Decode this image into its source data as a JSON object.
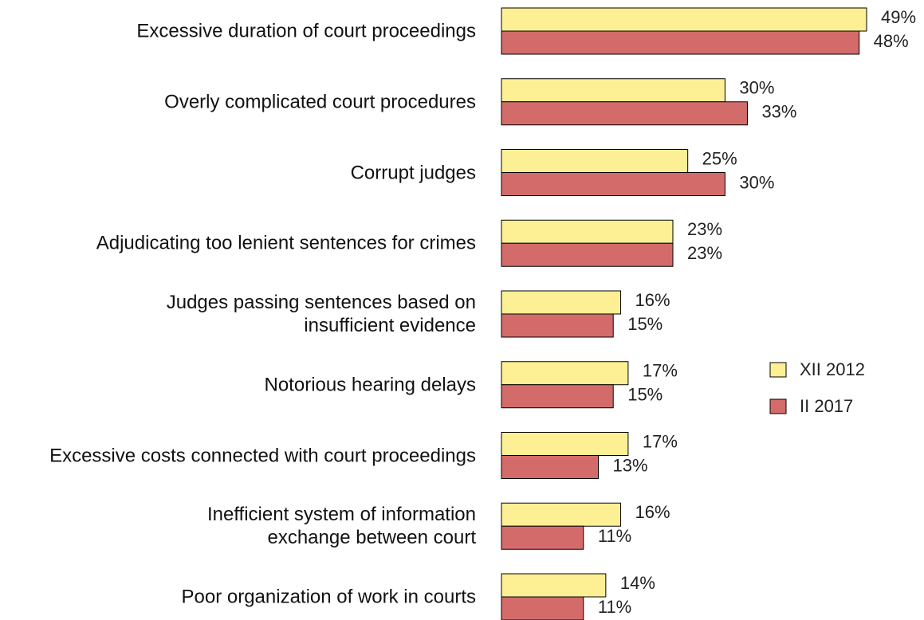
{
  "chart_data": {
    "type": "bar",
    "orientation": "horizontal",
    "categories": [
      "Excessive duration of court proceedings",
      "Overly complicated court procedures",
      "Corrupt judges",
      "Adjudicating too lenient sentences for crimes",
      "Judges passing sentences based on\ninsufficient evidence",
      "Notorious hearing delays",
      "Excessive costs connected with court proceedings",
      "Inefficient system of information\nexchange between court",
      "Poor organization of work in courts"
    ],
    "series": [
      {
        "name": "XII 2012",
        "color": "#fcef94",
        "values": [
          49,
          30,
          25,
          23,
          16,
          17,
          17,
          16,
          14
        ],
        "value_labels": [
          "49%",
          "30%",
          "25%",
          "23%",
          "16%",
          "17%",
          "17%",
          "16%",
          "14%"
        ]
      },
      {
        "name": "II 2017",
        "color": "#d46b6b",
        "values": [
          48,
          33,
          30,
          23,
          15,
          15,
          13,
          11,
          11
        ],
        "value_labels": [
          "48%",
          "33%",
          "30%",
          "23%",
          "15%",
          "15%",
          "13%",
          "11%",
          "11%"
        ]
      }
    ],
    "legend": "right"
  }
}
